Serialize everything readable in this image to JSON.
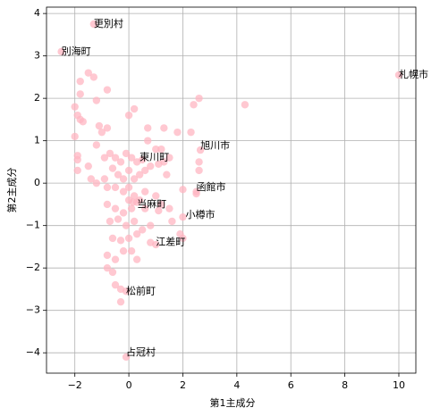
{
  "chart_data": {
    "type": "scatter",
    "xlabel": "第1主成分",
    "ylabel": "第2主成分",
    "xlim": [
      -3.05,
      10.63
    ],
    "ylim": [
      -4.48,
      4.15
    ],
    "xticks": [
      {
        "value": -2,
        "label": "−2"
      },
      0,
      2,
      4,
      6,
      8,
      10
    ],
    "yticks": [
      {
        "value": -4,
        "label": "−4"
      },
      {
        "value": -3,
        "label": "−3"
      },
      {
        "value": -2,
        "label": "−2"
      },
      {
        "value": -1,
        "label": "−1"
      },
      0,
      1,
      2,
      3,
      4
    ],
    "grid": true,
    "series": [
      {
        "color": "#ffb6c1",
        "x": [
          -2.5,
          -1.3,
          -1.5,
          -1.3,
          -1.8,
          -1.8,
          -0.8,
          -1.2,
          -2.0,
          -1.9,
          -1.8,
          -1.7,
          -1.1,
          -0.8,
          -1.0,
          -2.0,
          -1.2,
          0.0,
          0.2,
          1.3,
          0.7,
          1.8,
          2.3,
          2.4,
          2.6,
          4.3,
          0.7,
          1.0,
          1.2,
          1.5,
          1.3,
          2.6,
          2.6,
          -1.9,
          -1.9,
          -1.9,
          -1.5,
          -0.9,
          -0.7,
          -0.5,
          -0.3,
          -0.1,
          0.1,
          0.3,
          0.5,
          0.8,
          1.1,
          1.4,
          -1.4,
          -1.2,
          -0.9,
          -0.6,
          -0.4,
          -0.2,
          0.0,
          0.2,
          0.4,
          0.6,
          -0.8,
          -0.5,
          -0.2,
          0.0,
          0.2,
          0.4,
          0.6,
          1.0,
          1.2,
          2.0,
          2.5,
          -0.8,
          -0.5,
          -0.2,
          0.0,
          0.1,
          0.3,
          0.6,
          1.1,
          1.5,
          2.0,
          -0.7,
          -0.4,
          -0.1,
          0.2,
          0.5,
          0.8,
          1.6,
          -0.6,
          -0.3,
          0.0,
          0.3,
          0.8,
          1.0,
          1.9,
          2.0,
          -0.8,
          -0.5,
          -0.2,
          0.1,
          0.3,
          -0.8,
          -0.6,
          -0.5,
          -0.3,
          -0.1,
          -0.3,
          -0.1,
          10.0,
          2.65,
          0.15,
          2.5
        ],
        "values": [
          3.1,
          3.75,
          2.6,
          2.5,
          2.4,
          2.1,
          2.2,
          1.95,
          1.8,
          1.6,
          1.5,
          1.45,
          1.35,
          1.3,
          1.2,
          1.1,
          0.9,
          1.6,
          1.75,
          1.3,
          1.3,
          1.2,
          1.2,
          1.85,
          2.0,
          1.85,
          1.0,
          0.8,
          0.8,
          0.6,
          0.5,
          0.5,
          0.3,
          0.65,
          0.55,
          0.3,
          0.4,
          0.6,
          0.7,
          0.6,
          0.5,
          0.7,
          0.6,
          0.5,
          0.55,
          0.4,
          0.45,
          0.2,
          0.1,
          0.0,
          0.1,
          0.35,
          0.2,
          0.1,
          0.3,
          0.1,
          0.2,
          0.3,
          -0.1,
          -0.1,
          -0.2,
          -0.1,
          -0.3,
          -0.4,
          -0.2,
          -0.3,
          -0.5,
          -0.15,
          -0.2,
          -0.5,
          -0.6,
          -0.7,
          -0.4,
          -0.6,
          -0.45,
          -0.6,
          -0.65,
          -0.6,
          -0.8,
          -0.9,
          -0.85,
          -1.0,
          -0.9,
          -1.1,
          -1.0,
          -0.9,
          -1.3,
          -1.35,
          -1.3,
          -1.2,
          -1.4,
          -1.45,
          -1.2,
          -1.3,
          -1.7,
          -1.8,
          -1.6,
          -1.6,
          -1.8,
          -2.0,
          -2.1,
          -2.4,
          -2.5,
          -2.55,
          -2.8,
          -4.1,
          2.55,
          0.78,
          -0.45,
          -0.25
        ]
      }
    ],
    "annotations": [
      {
        "text": "札幌市",
        "x": 10.0,
        "y": 2.55
      },
      {
        "text": "更別村",
        "x": -1.3,
        "y": 3.75
      },
      {
        "text": "別海町",
        "x": -2.5,
        "y": 3.1
      },
      {
        "text": "旭川市",
        "x": 2.65,
        "y": 0.88
      },
      {
        "text": "東川町",
        "x": 0.4,
        "y": 0.6
      },
      {
        "text": "函館市",
        "x": 2.5,
        "y": -0.1
      },
      {
        "text": "当麻町",
        "x": 0.3,
        "y": -0.5
      },
      {
        "text": "小樽市",
        "x": 2.1,
        "y": -0.75
      },
      {
        "text": "江差町",
        "x": 1.0,
        "y": -1.4
      },
      {
        "text": "松前町",
        "x": -0.1,
        "y": -2.55
      },
      {
        "text": "占冠村",
        "x": -0.1,
        "y": -4.0
      }
    ]
  }
}
